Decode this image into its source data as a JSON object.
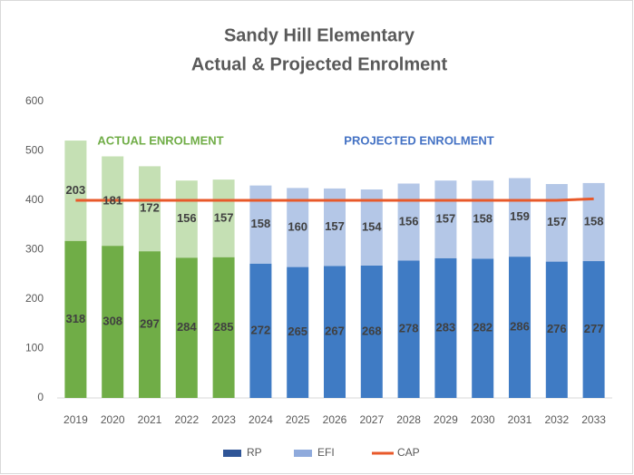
{
  "chart_data": {
    "type": "stacked_bar_line",
    "title": "Sandy Hill Elementary",
    "subtitle": "Actual & Projected Enrolment",
    "annotations": [
      {
        "text": "ACTUAL ENROLMENT",
        "color": "#70ad47"
      },
      {
        "text": "PROJECTED ENROLMENT",
        "color": "#4472c4"
      }
    ],
    "categories": [
      "2019",
      "2020",
      "2021",
      "2022",
      "2023",
      "2024",
      "2025",
      "2026",
      "2027",
      "2028",
      "2029",
      "2030",
      "2031",
      "2032",
      "2033"
    ],
    "series": [
      {
        "name": "RP",
        "color": "#2f5597",
        "kind": "bar",
        "point_colors": [
          "#70ad47",
          "#70ad47",
          "#70ad47",
          "#70ad47",
          "#70ad47",
          "#3f7bc4",
          "#3f7bc4",
          "#3f7bc4",
          "#3f7bc4",
          "#3f7bc4",
          "#3f7bc4",
          "#3f7bc4",
          "#3f7bc4",
          "#3f7bc4",
          "#3f7bc4"
        ],
        "values": [
          318,
          308,
          297,
          284,
          285,
          272,
          265,
          267,
          268,
          278,
          283,
          282,
          286,
          276,
          277
        ]
      },
      {
        "name": "EFI",
        "color": "#8faadc",
        "kind": "bar",
        "point_colors": [
          "#c5e0b4",
          "#c5e0b4",
          "#c5e0b4",
          "#c5e0b4",
          "#c5e0b4",
          "#b4c7e7",
          "#b4c7e7",
          "#b4c7e7",
          "#b4c7e7",
          "#b4c7e7",
          "#b4c7e7",
          "#b4c7e7",
          "#b4c7e7",
          "#b4c7e7",
          "#b4c7e7"
        ],
        "values": [
          203,
          181,
          172,
          156,
          157,
          158,
          160,
          157,
          154,
          156,
          157,
          158,
          159,
          157,
          158
        ]
      },
      {
        "name": "CAP",
        "color": "#e8592a",
        "kind": "line",
        "values": [
          400,
          400,
          400,
          400,
          400,
          400,
          400,
          400,
          400,
          400,
          400,
          400,
          400,
          400,
          403
        ]
      }
    ],
    "ylim": [
      0,
      600
    ],
    "yticks": [
      0,
      100,
      200,
      300,
      400,
      500,
      600
    ],
    "grid": false
  }
}
